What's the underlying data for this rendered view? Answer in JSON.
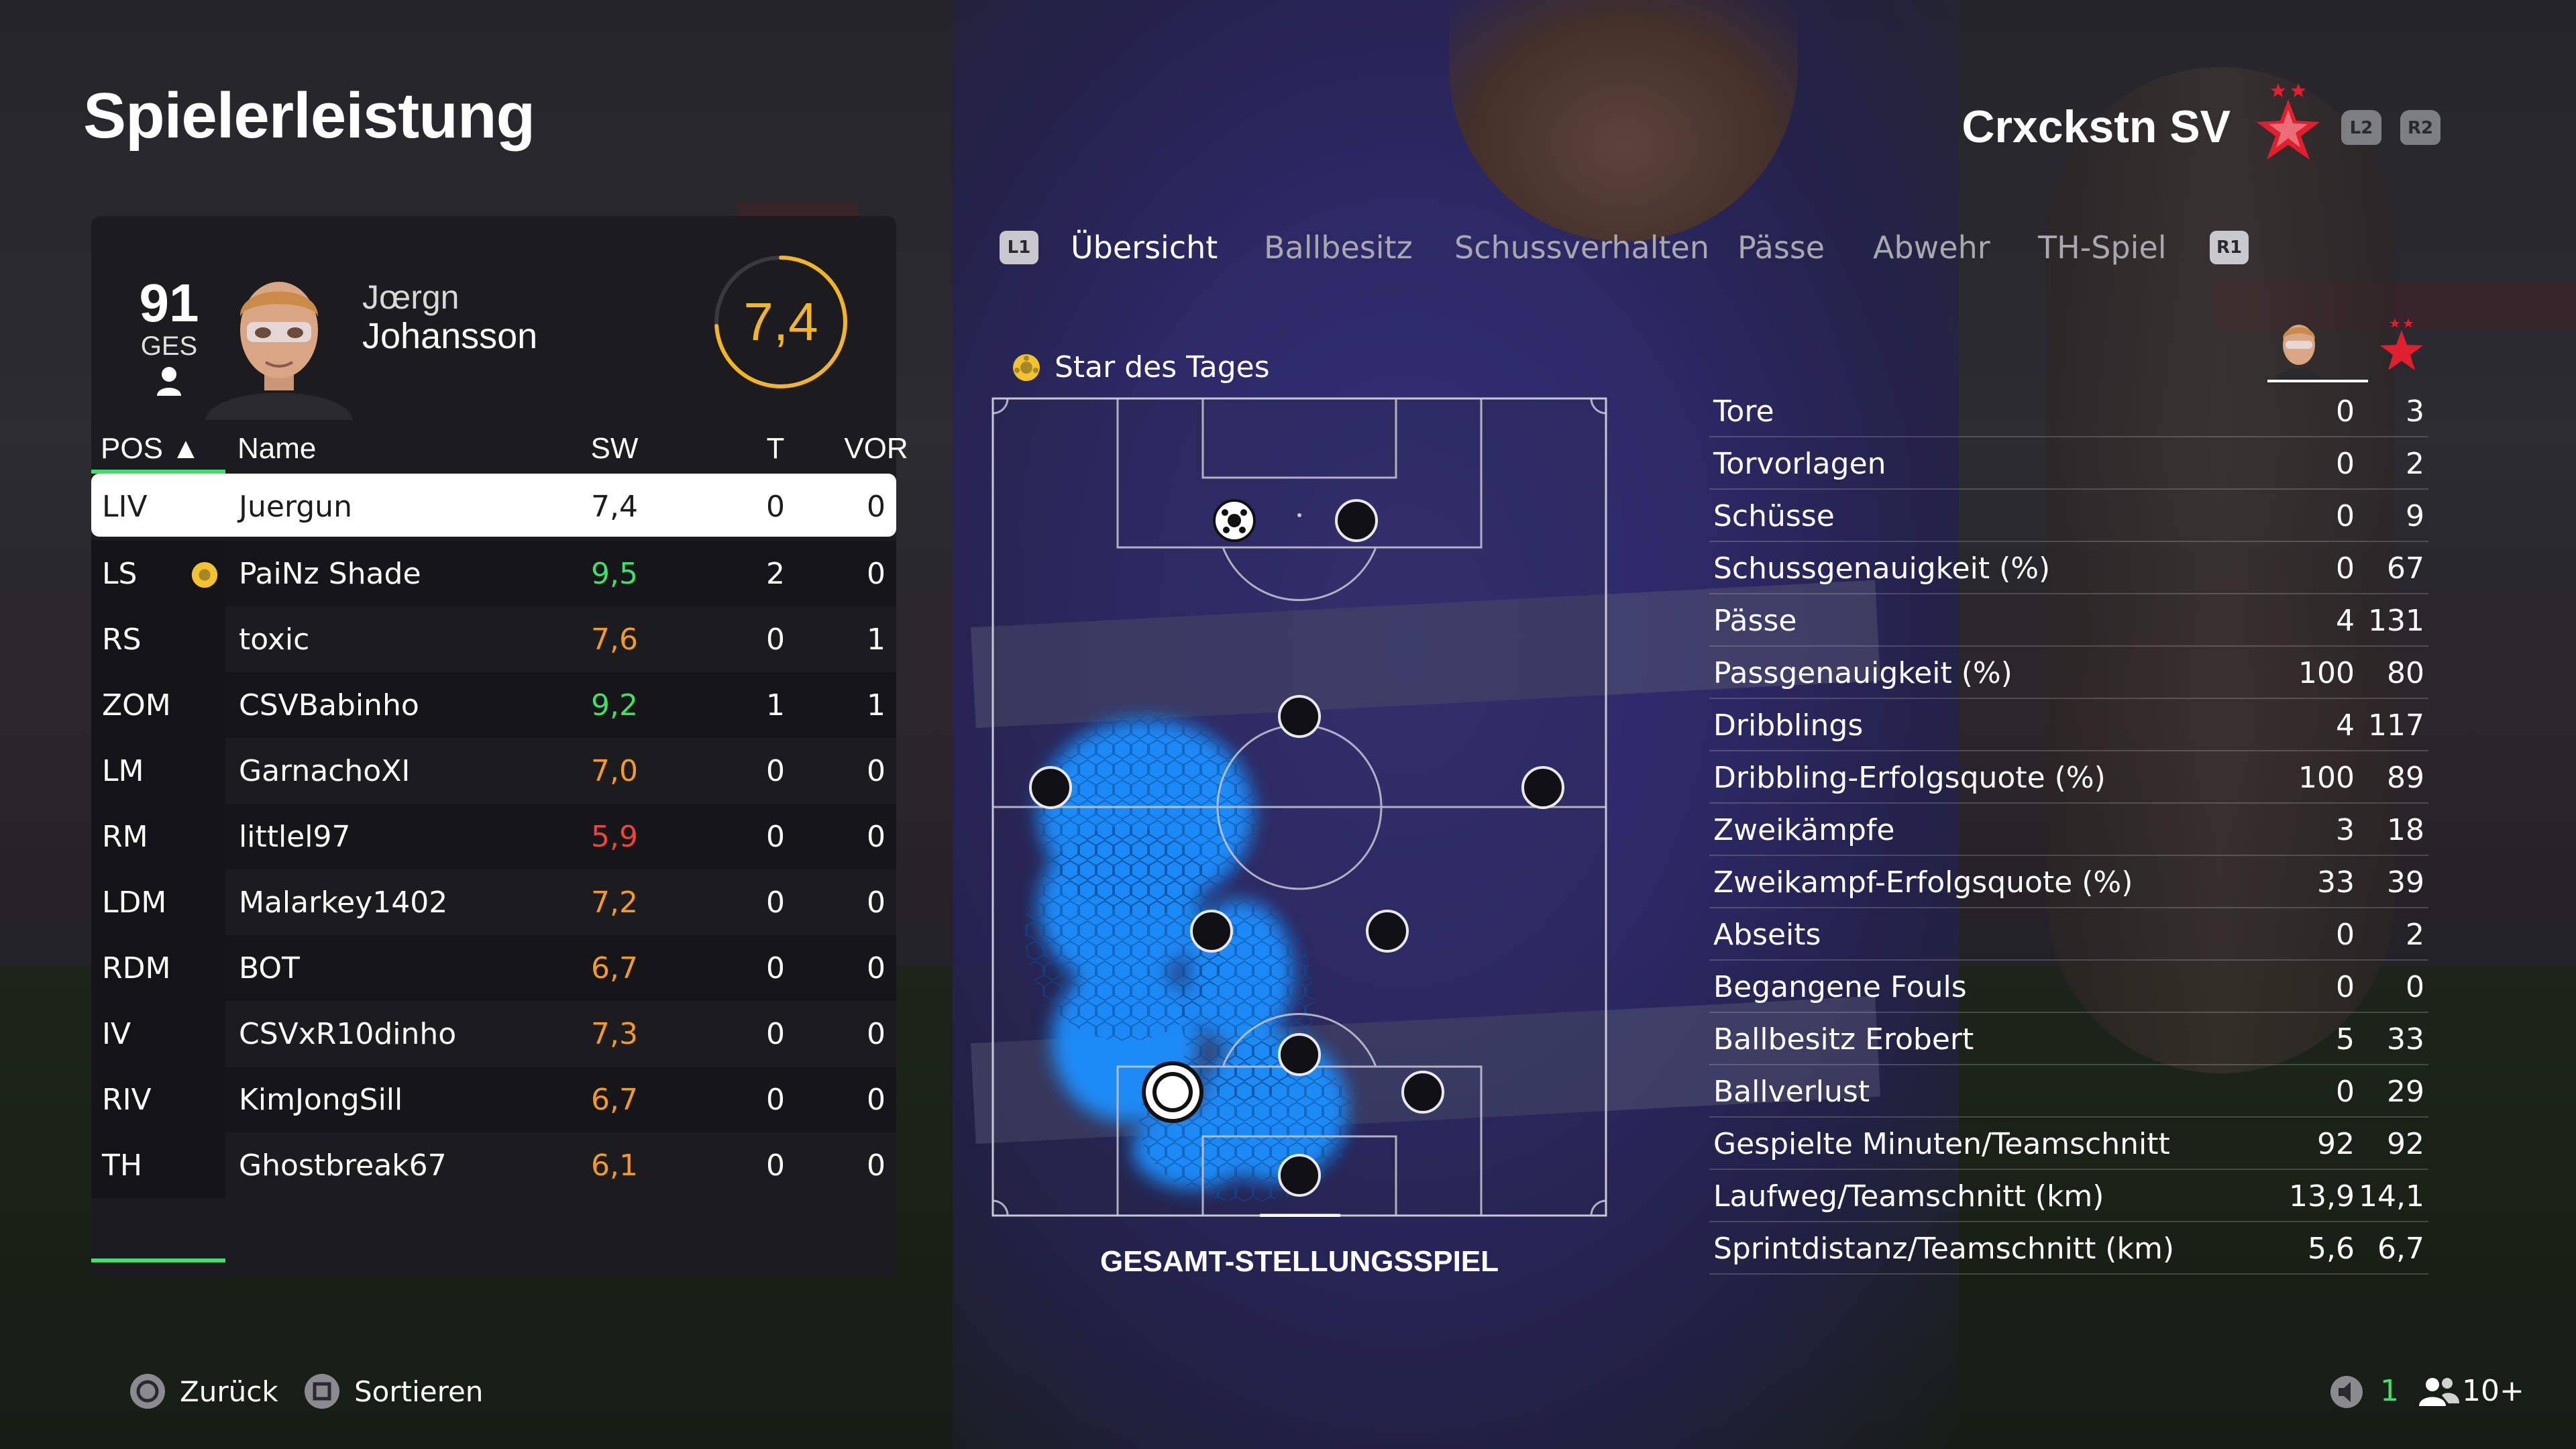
{
  "header": {
    "title": "Spielerleistung",
    "club_name": "Crxckstn SV",
    "shoulder_left": "L2",
    "shoulder_right": "R2"
  },
  "player_card": {
    "overall": "91",
    "overall_label": "GES",
    "first_name": "Jœrgn",
    "last_name": "Johansson",
    "match_rating": "7,4",
    "match_rating_fraction": 0.74,
    "rating_color": "#f2b52a"
  },
  "table": {
    "headers": {
      "pos": "POS ▲",
      "name": "Name",
      "sw": "SW",
      "t": "T",
      "vor": "VOR"
    },
    "rows": [
      {
        "pos": "LIV",
        "name": "Juergun",
        "sw": "7,4",
        "t": "0",
        "vor": "0",
        "sw_class": "normal",
        "selected": true,
        "star": false
      },
      {
        "pos": "LS",
        "name": "PaiNz Shade",
        "sw": "9,5",
        "t": "2",
        "vor": "0",
        "sw_class": "green",
        "selected": false,
        "star": true
      },
      {
        "pos": "RS",
        "name": "toxic",
        "sw": "7,6",
        "t": "0",
        "vor": "1",
        "sw_class": "orange",
        "selected": false,
        "star": false
      },
      {
        "pos": "ZOM",
        "name": "CSVBabinho",
        "sw": "9,2",
        "t": "1",
        "vor": "1",
        "sw_class": "green",
        "selected": false,
        "star": false
      },
      {
        "pos": "LM",
        "name": "GarnachoXI",
        "sw": "7,0",
        "t": "0",
        "vor": "0",
        "sw_class": "orange",
        "selected": false,
        "star": false
      },
      {
        "pos": "RM",
        "name": "littlel97",
        "sw": "5,9",
        "t": "0",
        "vor": "0",
        "sw_class": "red",
        "selected": false,
        "star": false
      },
      {
        "pos": "LDM",
        "name": "Malarkey1402",
        "sw": "7,2",
        "t": "0",
        "vor": "0",
        "sw_class": "orange",
        "selected": false,
        "star": false
      },
      {
        "pos": "RDM",
        "name": "BOT",
        "sw": "6,7",
        "t": "0",
        "vor": "0",
        "sw_class": "orange",
        "selected": false,
        "star": false
      },
      {
        "pos": "IV",
        "name": "CSVxR10dinho",
        "sw": "7,3",
        "t": "0",
        "vor": "0",
        "sw_class": "orange",
        "selected": false,
        "star": false
      },
      {
        "pos": "RIV",
        "name": "KimJongSill",
        "sw": "6,7",
        "t": "0",
        "vor": "0",
        "sw_class": "orange",
        "selected": false,
        "star": false
      },
      {
        "pos": "TH",
        "name": "Ghostbreak67",
        "sw": "6,1",
        "t": "0",
        "vor": "0",
        "sw_class": "orange",
        "selected": false,
        "star": false
      }
    ]
  },
  "tabs": {
    "left_button": "L1",
    "right_button": "R1",
    "items": [
      {
        "label": "Übersicht",
        "active": true
      },
      {
        "label": "Ballbesitz",
        "active": false
      },
      {
        "label": "Schussverhalten",
        "active": false
      },
      {
        "label": "Pässe",
        "active": false
      },
      {
        "label": "Abwehr",
        "active": false
      },
      {
        "label": "TH-Spiel",
        "active": false
      }
    ]
  },
  "heatmap": {
    "star_label": "Star des Tages",
    "caption": "GESAMT-STELLUNGSSPIEL",
    "heat_color": "#1e90ff"
  },
  "stats": [
    {
      "label": "Tore",
      "player": "0",
      "team": "3"
    },
    {
      "label": "Torvorlagen",
      "player": "0",
      "team": "2"
    },
    {
      "label": "Schüsse",
      "player": "0",
      "team": "9"
    },
    {
      "label": "Schussgenauigkeit (%)",
      "player": "0",
      "team": "67"
    },
    {
      "label": "Pässe",
      "player": "4",
      "team": "131"
    },
    {
      "label": "Passgenauigkeit (%)",
      "player": "100",
      "team": "80"
    },
    {
      "label": "Dribblings",
      "player": "4",
      "team": "117"
    },
    {
      "label": "Dribbling-Erfolgsquote (%)",
      "player": "100",
      "team": "89"
    },
    {
      "label": "Zweikämpfe",
      "player": "3",
      "team": "18"
    },
    {
      "label": "Zweikampf-Erfolgsquote (%)",
      "player": "33",
      "team": "39"
    },
    {
      "label": "Abseits",
      "player": "0",
      "team": "2"
    },
    {
      "label": "Begangene Fouls",
      "player": "0",
      "team": "0"
    },
    {
      "label": "Ballbesitz Erobert",
      "player": "5",
      "team": "33"
    },
    {
      "label": "Ballverlust",
      "player": "0",
      "team": "29"
    },
    {
      "label": "Gespielte Minuten/Teamschnitt",
      "player": "92",
      "team": "92"
    },
    {
      "label": "Laufweg/Teamschnitt (km)",
      "player": "13,9",
      "team": "14,1"
    },
    {
      "label": "Sprintdistanz/Teamschnitt (km)",
      "player": "5,6",
      "team": "6,7"
    }
  ],
  "footer": {
    "back_label": "Zurück",
    "sort_label": "Sortieren",
    "audio_count": "1",
    "players_count": "10+"
  },
  "colors": {
    "accent_green": "#3ee06a",
    "rating_orange": "#f59a23",
    "rating_red": "#f0443b",
    "club_red": "#e0202e"
  }
}
